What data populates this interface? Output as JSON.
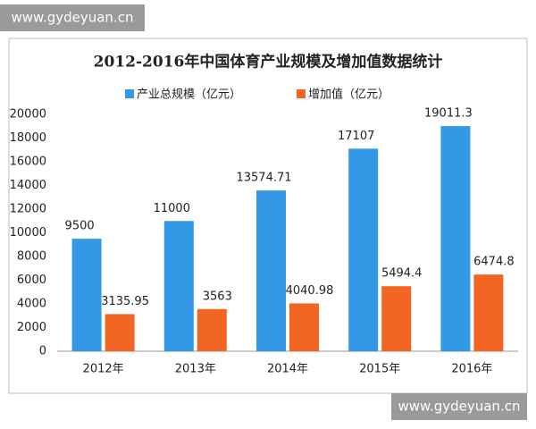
{
  "watermarks": [
    "www.gydeyuan.cn",
    "www.gydeyuan.cn"
  ],
  "chart_data": {
    "type": "bar",
    "title": "2012-2016年中国体育产业规模及增加值数据统计",
    "categories": [
      "2012年",
      "2013年",
      "2014年",
      "2015年",
      "2016年"
    ],
    "series": [
      {
        "name": "产业总规模（亿元）",
        "color": "#3399e6",
        "values": [
          9500,
          11000,
          13574.71,
          17107,
          19011.3
        ]
      },
      {
        "name": "增加值（亿元）",
        "color": "#f26522",
        "values": [
          3135.95,
          3563,
          4040.98,
          5494.4,
          6474.8
        ]
      }
    ],
    "ylim": [
      0,
      20000
    ],
    "yticks": [
      0,
      2000,
      4000,
      6000,
      8000,
      10000,
      12000,
      14000,
      16000,
      18000,
      20000
    ],
    "grid": false
  }
}
